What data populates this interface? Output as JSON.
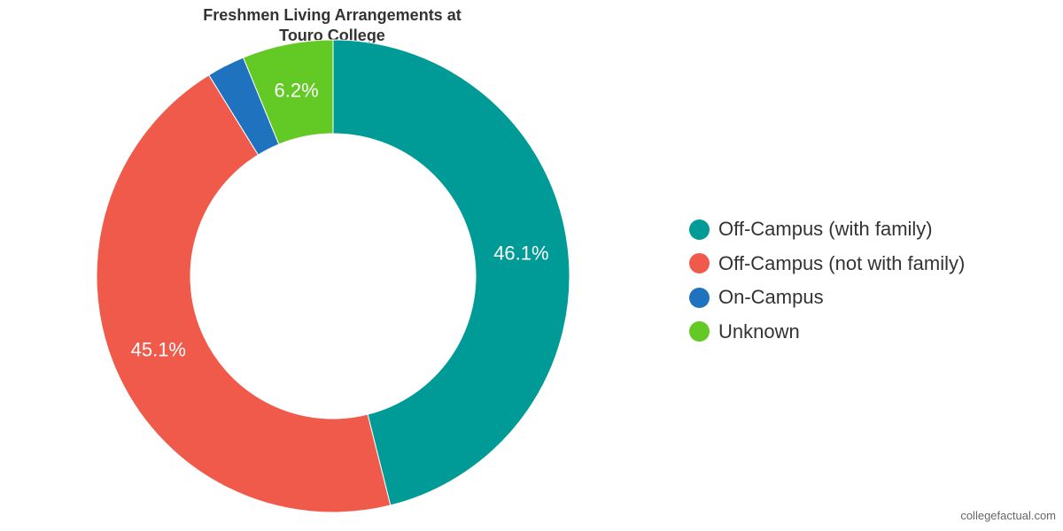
{
  "chart_data": {
    "type": "pie",
    "variant": "donut",
    "title": "Freshmen Living Arrangements at Touro College",
    "title_lines": [
      "Freshmen Living Arrangements at",
      "Touro College"
    ],
    "series": [
      {
        "name": "",
        "values": [
          {
            "category": "Off-Campus (with family)",
            "value": 46.1,
            "label": "46.1%",
            "color": "#009B96"
          },
          {
            "category": "Off-Campus (not with family)",
            "value": 45.1,
            "label": "45.1%",
            "color": "#F05A4A"
          },
          {
            "category": "On-Campus",
            "value": 2.6,
            "label": "",
            "color": "#1F72BE"
          },
          {
            "category": "Unknown",
            "value": 6.2,
            "label": "6.2%",
            "color": "#62C925"
          }
        ]
      }
    ],
    "legend": {
      "placement": "right",
      "entries": [
        "Off-Campus (with family)",
        "Off-Campus (not with family)",
        "On-Campus",
        "Unknown"
      ]
    },
    "start_angle": "12 o'clock",
    "direction": "clockwise"
  },
  "credit": "collegefactual.com"
}
